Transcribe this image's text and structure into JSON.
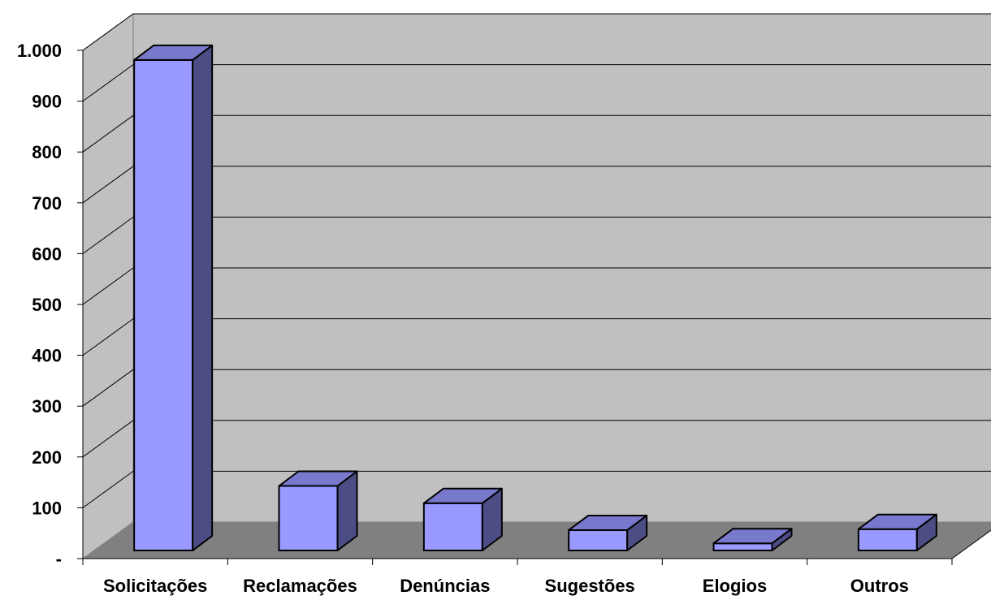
{
  "chart_data": {
    "type": "bar",
    "categories": [
      "Solicitações",
      "Reclamações",
      "Denúncias",
      "Sugestões",
      "Elogios",
      "Outros"
    ],
    "values": [
      965,
      127,
      93,
      40,
      14,
      42
    ],
    "ylim": [
      0,
      1000
    ],
    "yticks": [
      {
        "value": 0,
        "label": "-"
      },
      {
        "value": 100,
        "label": "100"
      },
      {
        "value": 200,
        "label": "200"
      },
      {
        "value": 300,
        "label": "300"
      },
      {
        "value": 400,
        "label": "400"
      },
      {
        "value": 500,
        "label": "500"
      },
      {
        "value": 600,
        "label": "600"
      },
      {
        "value": 700,
        "label": "700"
      },
      {
        "value": 800,
        "label": "800"
      },
      {
        "value": 900,
        "label": "900"
      },
      {
        "value": 1000,
        "label": "1.000"
      }
    ],
    "grid": true,
    "style": "3d-column",
    "colors": {
      "bar_front": "#9999ff",
      "bar_side": "#4d4d85",
      "bar_top": "#7878cc",
      "wall": "#c0c0c0",
      "floor": "#808080",
      "outline": "#000000"
    }
  }
}
